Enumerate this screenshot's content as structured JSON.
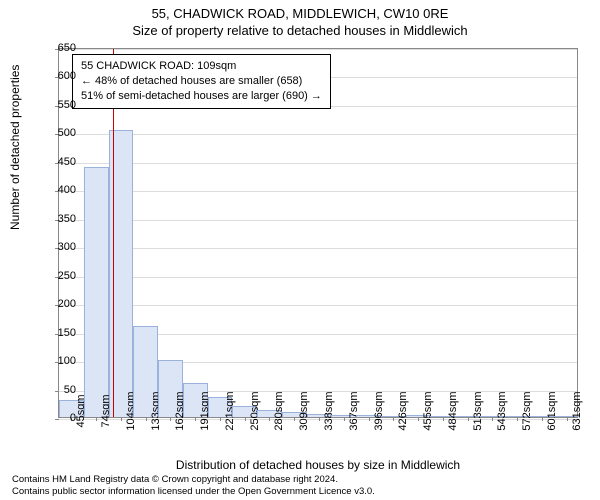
{
  "header": {
    "title": "55, CHADWICK ROAD, MIDDLEWICH, CW10 0RE",
    "subtitle": "Size of property relative to detached houses in Middlewich"
  },
  "chart": {
    "type": "histogram",
    "ylabel": "Number of detached properties",
    "xlabel": "Distribution of detached houses by size in Middlewich",
    "ylim": [
      0,
      650
    ],
    "ytick_step": 50,
    "yticks": [
      0,
      50,
      100,
      150,
      200,
      250,
      300,
      350,
      400,
      450,
      500,
      550,
      600,
      650
    ],
    "xticks": [
      "45sqm",
      "74sqm",
      "104sqm",
      "133sqm",
      "162sqm",
      "191sqm",
      "221sqm",
      "250sqm",
      "280sqm",
      "309sqm",
      "338sqm",
      "367sqm",
      "396sqm",
      "426sqm",
      "455sqm",
      "484sqm",
      "513sqm",
      "543sqm",
      "572sqm",
      "601sqm",
      "631sqm"
    ],
    "values": [
      30,
      440,
      505,
      160,
      100,
      60,
      35,
      20,
      12,
      8,
      5,
      4,
      3,
      2,
      3,
      1,
      0,
      0,
      0,
      0,
      1
    ],
    "bar_fill": "#dce5f5",
    "bar_border": "#9bb3dc",
    "grid_color": "#dddddd",
    "axis_color": "#888888",
    "marker_color": "#cc0000",
    "bar_width_ratio": 1.0,
    "fontsize_axis": 11,
    "fontsize_label": 12
  },
  "info_box": {
    "line1": "55 CHADWICK ROAD: 109sqm",
    "line2": "← 48% of detached houses are smaller (658)",
    "line3": "51% of semi-detached houses are larger (690) →"
  },
  "footer": {
    "line1": "Contains HM Land Registry data © Crown copyright and database right 2024.",
    "line2": "Contains public sector information licensed under the Open Government Licence v3.0."
  }
}
